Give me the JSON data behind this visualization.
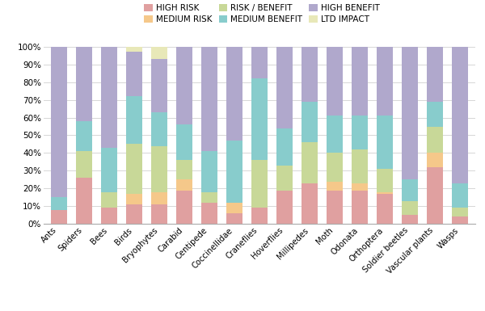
{
  "categories": [
    "Ants",
    "Spiders",
    "Bees",
    "Birds",
    "Bryophytes",
    "Carabid",
    "Centipede",
    "Coccinellidae",
    "Craneflies",
    "Hoverflies",
    "Millipedes",
    "Moth",
    "Odonata",
    "Orthoptera",
    "Soldier beetles",
    "Vascular plants",
    "Wasps"
  ],
  "high_risk": [
    8,
    26,
    9,
    11,
    11,
    19,
    12,
    6,
    9,
    19,
    23,
    19,
    19,
    17,
    5,
    32,
    4
  ],
  "medium_risk": [
    0,
    0,
    0,
    6,
    7,
    6,
    0,
    6,
    0,
    0,
    0,
    5,
    4,
    1,
    0,
    8,
    0
  ],
  "risk_benefit": [
    0,
    15,
    9,
    28,
    26,
    11,
    6,
    0,
    27,
    14,
    23,
    16,
    19,
    13,
    8,
    15,
    5
  ],
  "medium_benefit": [
    7,
    17,
    25,
    27,
    19,
    20,
    23,
    35,
    46,
    21,
    23,
    21,
    19,
    30,
    12,
    14,
    14
  ],
  "high_benefit": [
    85,
    42,
    57,
    25,
    30,
    44,
    59,
    53,
    18,
    46,
    31,
    39,
    39,
    39,
    75,
    31,
    77
  ],
  "ltd_impact": [
    0,
    0,
    0,
    3,
    7,
    0,
    0,
    0,
    0,
    0,
    0,
    0,
    0,
    0,
    0,
    0,
    0
  ],
  "colors": {
    "high_risk": "#e0a0a0",
    "medium_risk": "#f5c88a",
    "risk_benefit": "#c8d898",
    "medium_benefit": "#88cccc",
    "high_benefit": "#b0a8cc",
    "ltd_impact": "#e8e8b8"
  },
  "legend_labels": [
    "HIGH RISK",
    "MEDIUM RISK",
    "RISK / BENEFIT",
    "MEDIUM BENEFIT",
    "HIGH BENEFIT",
    "LTD IMPACT"
  ],
  "ytick_labels": [
    "0%",
    "10%",
    "20%",
    "30%",
    "40%",
    "50%",
    "60%",
    "70%",
    "80%",
    "90%",
    "100%"
  ],
  "background_color": "#ffffff",
  "grid_color": "#d0d0d0",
  "bar_width": 0.65
}
